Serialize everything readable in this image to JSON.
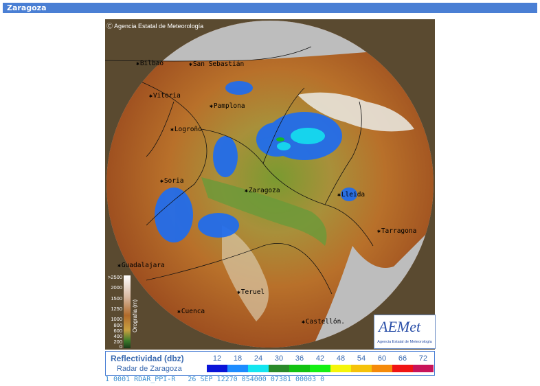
{
  "header": {
    "title": "Zaragoza"
  },
  "map": {
    "copyright": "Agencia Estatal de Meteorología",
    "cities": [
      {
        "name": "Bilbao",
        "icon": "asterisk-marker"
      },
      {
        "name": "San Sebastián",
        "icon": "asterisk-marker"
      },
      {
        "name": "Vitoria",
        "icon": "asterisk-marker"
      },
      {
        "name": "Pamplona",
        "icon": "asterisk-marker"
      },
      {
        "name": "Logroño",
        "icon": "asterisk-marker"
      },
      {
        "name": "Zaragoza",
        "icon": "asterisk-marker"
      },
      {
        "name": "Soria",
        "icon": "asterisk-marker"
      },
      {
        "name": "Lleida",
        "icon": "asterisk-marker"
      },
      {
        "name": "Tarragona",
        "icon": "asterisk-marker"
      },
      {
        "name": "Guadalajara",
        "icon": "asterisk-marker"
      },
      {
        "name": "Teruel",
        "icon": "asterisk-marker"
      },
      {
        "name": "Cuenca",
        "icon": "asterisk-marker"
      },
      {
        "name": "Castellón.",
        "icon": "none"
      }
    ],
    "altitude_legend": {
      "title": "Orografía (m)",
      "labels": [
        ">2500",
        "2000",
        "1500",
        "1250",
        "1000",
        "800",
        "600",
        "400",
        "200",
        "0"
      ]
    },
    "logo": {
      "main": "AEMet",
      "sub": "Agencia Estatal de Meteorología"
    }
  },
  "legend": {
    "title": "Reflectividad (dbz)",
    "subtitle": "Radar de Zaragoza",
    "scale": [
      {
        "value": "12",
        "color": "#0a14d8"
      },
      {
        "value": "18",
        "color": "#1e8cff"
      },
      {
        "value": "24",
        "color": "#14e6f0"
      },
      {
        "value": "30",
        "color": "#2a8a2a"
      },
      {
        "value": "36",
        "color": "#12c212"
      },
      {
        "value": "42",
        "color": "#14f014"
      },
      {
        "value": "48",
        "color": "#f5f50a"
      },
      {
        "value": "54",
        "color": "#f5c20a"
      },
      {
        "value": "60",
        "color": "#f58a0a"
      },
      {
        "value": "66",
        "color": "#f01414"
      },
      {
        "value": "72",
        "color": "#c8145a"
      }
    ]
  },
  "status_line": {
    "text": "1 0001 RDAR_PPI-R   26 SEP 12270 054000 07381 00003 0"
  }
}
